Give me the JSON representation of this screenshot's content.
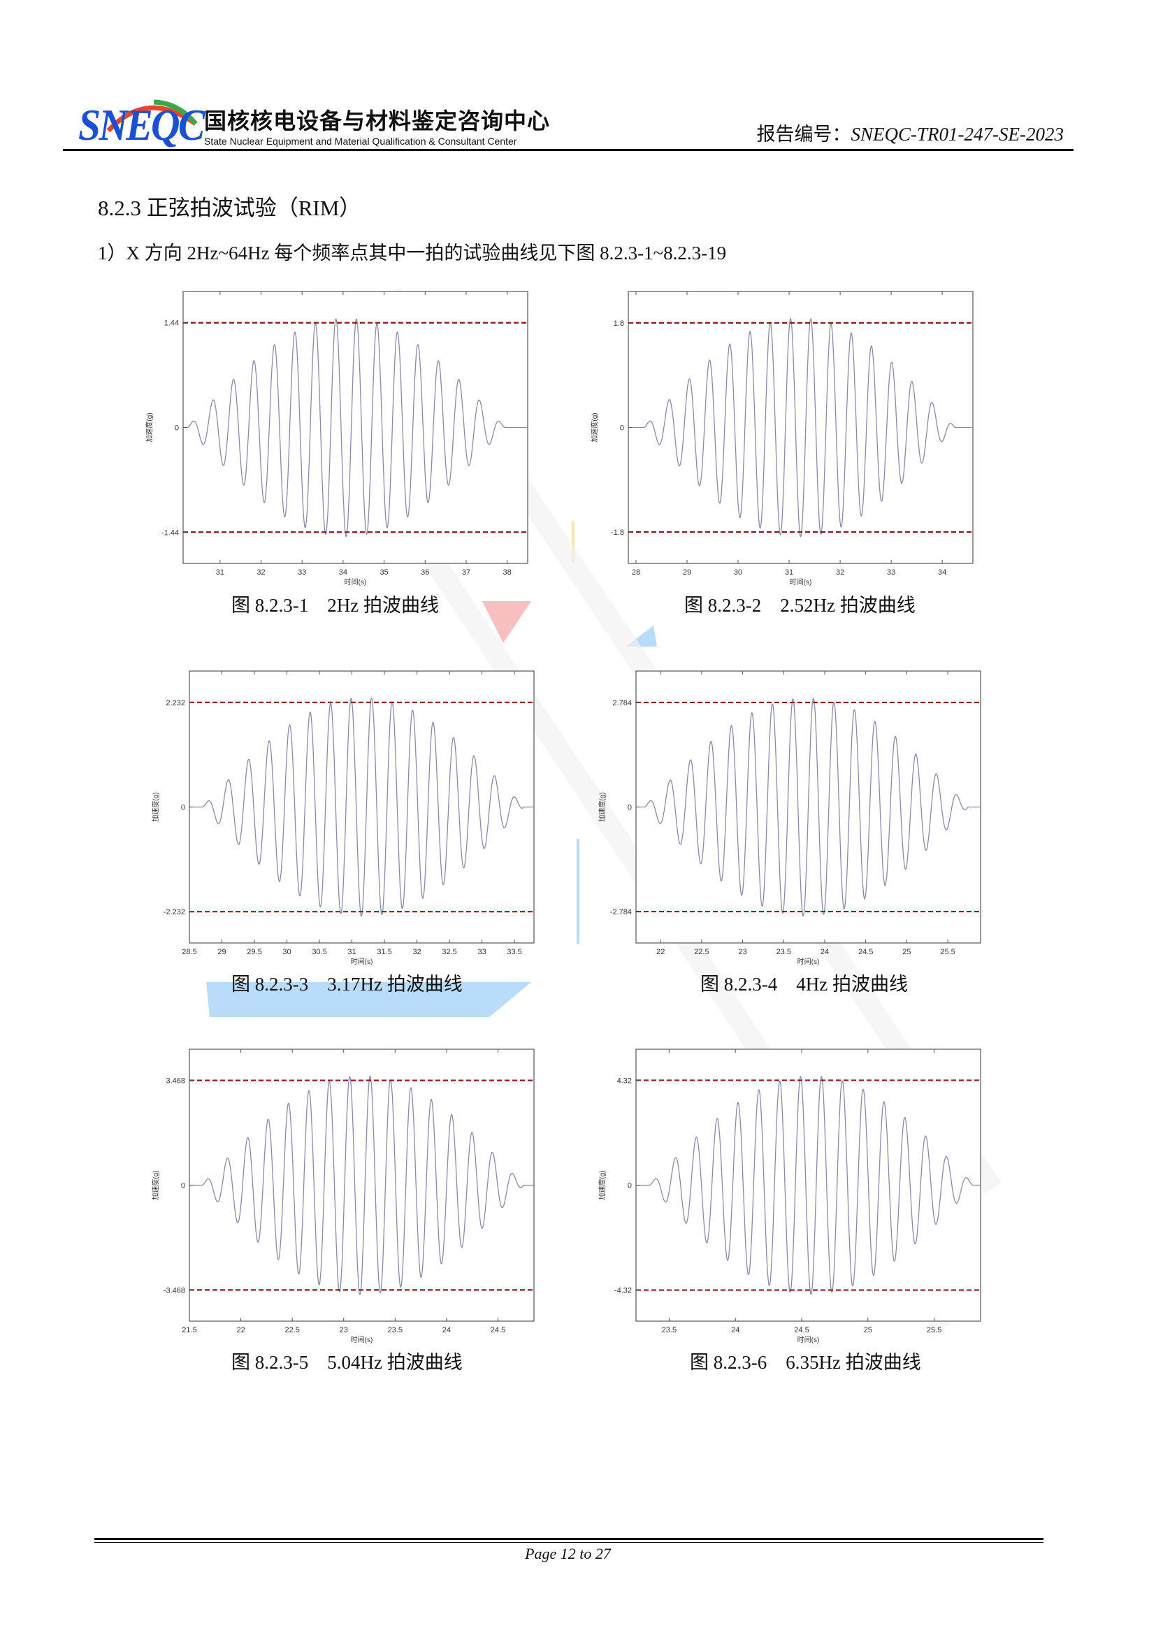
{
  "header": {
    "logo_text": "SNEQC",
    "org_name_cn": "国核核电设备与材料鉴定咨询中心",
    "org_name_en": "State Nuclear Equipment and Material Qualification & Consultant Center",
    "report_label": "报告编号：",
    "report_number": "SNEQC-TR01-247-SE-2023"
  },
  "section": {
    "heading": "8.2.3 正弦拍波试验（RIM）",
    "intro": "1）X 方向 2Hz~64Hz 每个频率点其中一拍的试验曲线见下图 8.2.3-1~8.2.3-19"
  },
  "colors": {
    "curve": "#8a8aa8",
    "limit_line": "#8b1a1a",
    "logo": "#1a4fd6"
  },
  "chart_data": [
    {
      "type": "line",
      "caption": "图 8.2.3-1    2Hz 拍波曲线",
      "frequency_hz": 2,
      "xlabel": "时间(s)",
      "ylabel": "加速度(g)",
      "xlim": [
        30.1,
        38.5
      ],
      "xticks": [
        "31",
        "32",
        "33",
        "34",
        "35",
        "36",
        "37",
        "38"
      ],
      "yticks": [
        "1.44",
        "0",
        "-1.44"
      ],
      "limit_lines": [
        1.44,
        -1.44
      ],
      "ylim": [
        -1.87,
        1.87
      ],
      "peak": 1.5,
      "beat_start": 30.2,
      "beat_end": 37.95
    },
    {
      "type": "line",
      "caption": "图 8.2.3-2    2.52Hz 拍波曲线",
      "frequency_hz": 2.52,
      "xlabel": "时间(s)",
      "ylabel": "加速度(g)",
      "xlim": [
        27.85,
        34.6
      ],
      "xticks": [
        "28",
        "29",
        "30",
        "31",
        "32",
        "33",
        "34"
      ],
      "yticks": [
        "1.8",
        "0",
        "-1.8"
      ],
      "limit_lines": [
        1.8,
        -1.8
      ],
      "ylim": [
        -2.34,
        2.34
      ],
      "peak": 1.88,
      "beat_start": 28.15,
      "beat_end": 34.25
    },
    {
      "type": "line",
      "caption": "图 8.2.3-3    3.17Hz 拍波曲线",
      "frequency_hz": 3.17,
      "xlabel": "时间(s)",
      "ylabel": "加速度(g)",
      "xlim": [
        28.5,
        33.8
      ],
      "xticks": [
        "28.5",
        "29",
        "29.5",
        "30",
        "30.5",
        "31",
        "31.5",
        "32",
        "32.5",
        "33",
        "33.5"
      ],
      "yticks": [
        "2.232",
        "0",
        "-2.232"
      ],
      "limit_lines": [
        2.232,
        -2.232
      ],
      "ylim": [
        -2.9,
        2.9
      ],
      "peak": 2.33,
      "beat_start": 28.7,
      "beat_end": 33.65
    },
    {
      "type": "line",
      "caption": "图 8.2.3-4    4Hz 拍波曲线",
      "frequency_hz": 4,
      "xlabel": "时间(s)",
      "ylabel": "加速度(g)",
      "xlim": [
        21.7,
        25.9
      ],
      "xticks": [
        "22",
        "22.5",
        "23",
        "23.5",
        "24",
        "24.5",
        "25",
        "25.5"
      ],
      "yticks": [
        "2.784",
        "0",
        "-2.784"
      ],
      "limit_lines": [
        2.784,
        -2.784
      ],
      "ylim": [
        -3.62,
        3.62
      ],
      "peak": 2.9,
      "beat_start": 21.8,
      "beat_end": 25.75
    },
    {
      "type": "line",
      "caption": "图 8.2.3-5    5.04Hz 拍波曲线",
      "frequency_hz": 5.04,
      "xlabel": "时间(s)",
      "ylabel": "加速度(g)",
      "xlim": [
        21.5,
        24.85
      ],
      "xticks": [
        "21.5",
        "22",
        "22.5",
        "23",
        "23.5",
        "24",
        "24.5"
      ],
      "yticks": [
        "3.468",
        "0",
        "-3.468"
      ],
      "limit_lines": [
        3.468,
        -3.468
      ],
      "ylim": [
        -4.5,
        4.5
      ],
      "peak": 3.62,
      "beat_start": 21.62,
      "beat_end": 24.75
    },
    {
      "type": "line",
      "caption": "图 8.2.3-6    6.35Hz 拍波曲线",
      "frequency_hz": 6.35,
      "xlabel": "时间(s)",
      "ylabel": "加速度(g)",
      "xlim": [
        23.25,
        25.85
      ],
      "xticks": [
        "23.5",
        "24",
        "24.5",
        "25",
        "25.5"
      ],
      "yticks": [
        "4.32",
        "0",
        "-4.32"
      ],
      "limit_lines": [
        4.32,
        -4.32
      ],
      "ylim": [
        -5.6,
        5.6
      ],
      "peak": 4.5,
      "beat_start": 23.35,
      "beat_end": 25.8
    }
  ],
  "footer": {
    "page": "Page 12 to 27"
  }
}
